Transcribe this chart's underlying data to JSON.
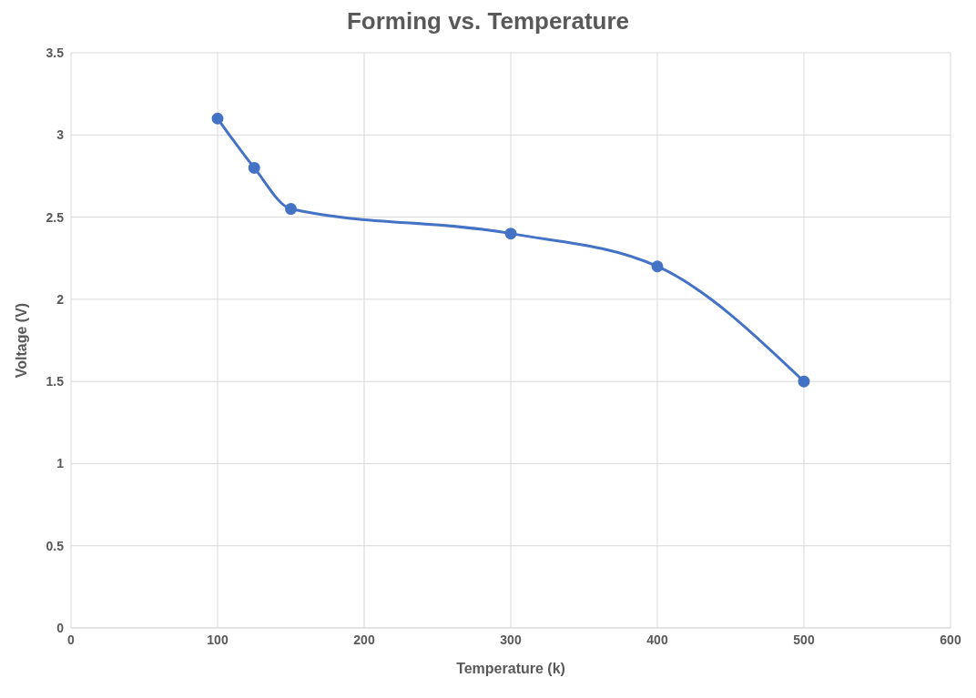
{
  "chart_data": {
    "type": "line",
    "title": "Forming vs. Temperature",
    "xlabel": "Temperature (k)",
    "ylabel": "Voltage (V)",
    "x": [
      100,
      125,
      150,
      300,
      400,
      500
    ],
    "series": [
      {
        "color": "#4472c4",
        "values": [
          3.1,
          2.8,
          2.55,
          2.4,
          2.2,
          1.5
        ]
      }
    ],
    "xlim": [
      0,
      600
    ],
    "xticks": [
      0,
      100,
      200,
      300,
      400,
      500,
      600
    ],
    "ylim": [
      0,
      3.5
    ],
    "yticks": [
      0,
      0.5,
      1,
      1.5,
      2,
      2.5,
      3,
      3.5
    ],
    "grid": true,
    "marker": "circle",
    "line_style": "solid"
  }
}
